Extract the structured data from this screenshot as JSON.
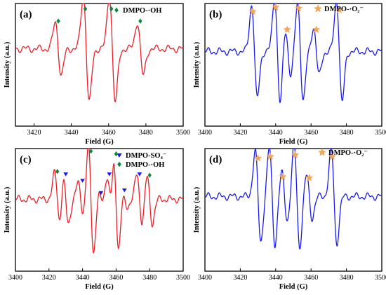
{
  "colors": {
    "red": "#ee1c25",
    "blue": "#1a1aee",
    "green": "#0a8a3a",
    "orange": "#f2a65a"
  },
  "chart_data": [
    {
      "id": "a",
      "type": "line",
      "panel_label": "(a)",
      "xlabel": "Field (G)",
      "ylabel": "Intensity (a.u.)",
      "xlim": [
        3410,
        3500
      ],
      "xticks": [
        3420,
        3440,
        3460,
        3480,
        3500
      ],
      "ylim": [
        -1.15,
        1.15
      ],
      "grid": false,
      "legend_position": "top-right",
      "line_color": "red",
      "baseline": 0.3,
      "lines": [
        {
          "center": 3433,
          "amp": 0.5
        },
        {
          "center": 3448,
          "amp": 1.0
        },
        {
          "center": 3462,
          "amp": 1.0
        },
        {
          "center": 3477,
          "amp": 0.5
        }
      ],
      "series": [
        {
          "name": "DMPO-·OH",
          "marker": "diamond",
          "color": "green",
          "x": [
            3433,
            3447.5,
            3461.5,
            3477
          ],
          "y": [
            0.82,
            1.05,
            1.05,
            0.82
          ]
        }
      ]
    },
    {
      "id": "b",
      "type": "line",
      "panel_label": "(b)",
      "xlabel": "Field (G)",
      "ylabel": "Intensity (a.u.)",
      "xlim": [
        3400,
        3500
      ],
      "xticks": [
        3400,
        3420,
        3440,
        3460,
        3480,
        3500
      ],
      "ylim": [
        -1.15,
        1.15
      ],
      "grid": false,
      "legend_position": "top-right",
      "line_color": "blue",
      "baseline": 0.25,
      "lines": [
        {
          "center": 3428,
          "amp": 0.88
        },
        {
          "center": 3441,
          "amp": 1.0
        },
        {
          "center": 3447,
          "amp": 0.45
        },
        {
          "center": 3454,
          "amp": 0.92
        },
        {
          "center": 3463,
          "amp": 0.45
        },
        {
          "center": 3476,
          "amp": 0.95
        }
      ],
      "series": [
        {
          "name": "DMPO-·O₂⁻",
          "marker": "star",
          "color": "orange",
          "x": [
            3427,
            3440,
            3446.5,
            3453,
            3463,
            3476
          ],
          "y": [
            1.0,
            1.08,
            0.66,
            1.06,
            0.66,
            1.03
          ]
        }
      ]
    },
    {
      "id": "c",
      "type": "line",
      "panel_label": "(c)",
      "xlabel": "Field (G)",
      "ylabel": "Intensity (a.u.)",
      "xlim": [
        3400,
        3500
      ],
      "xticks": [
        3400,
        3420,
        3440,
        3460,
        3480,
        3500
      ],
      "ylim": [
        -1.15,
        1.15
      ],
      "grid": false,
      "legend_position": "top-right",
      "line_color": "red",
      "baseline": 0.2,
      "lines": [
        {
          "center": 3425,
          "amp": 0.5
        },
        {
          "center": 3430,
          "amp": 0.45
        },
        {
          "center": 3439,
          "amp": 0.3
        },
        {
          "center": 3445,
          "amp": 1.0
        },
        {
          "center": 3451,
          "amp": 0.12
        },
        {
          "center": 3456,
          "amp": 0.45
        },
        {
          "center": 3460,
          "amp": 0.95
        },
        {
          "center": 3465,
          "amp": 0.15
        },
        {
          "center": 3474,
          "amp": 0.45
        },
        {
          "center": 3480,
          "amp": 0.45
        }
      ],
      "series": [
        {
          "name": "DMPO-SO₄⁻",
          "marker": "triangle-down",
          "color": "blue",
          "x": [
            3430,
            3440,
            3451,
            3456,
            3465,
            3474
          ],
          "y": [
            0.67,
            0.55,
            0.32,
            0.67,
            0.37,
            0.67
          ]
        },
        {
          "name": "DMPO-·OH",
          "marker": "diamond",
          "color": "green",
          "x": [
            3425,
            3445,
            3460,
            3480
          ],
          "y": [
            0.72,
            1.1,
            1.05,
            0.65
          ]
        }
      ]
    },
    {
      "id": "d",
      "type": "line",
      "panel_label": "(d)",
      "xlabel": "Field (G)",
      "ylabel": "Intensity (a.u.)",
      "xlim": [
        3400,
        3500
      ],
      "xticks": [
        3400,
        3420,
        3440,
        3460,
        3480,
        3500
      ],
      "ylim": [
        -1.15,
        1.15
      ],
      "grid": false,
      "legend_position": "top-right",
      "line_color": "blue",
      "baseline": 0.25,
      "lines": [
        {
          "center": 3430,
          "amp": 0.85
        },
        {
          "center": 3438,
          "amp": 0.9
        },
        {
          "center": 3445,
          "amp": 0.45
        },
        {
          "center": 3452,
          "amp": 0.95
        },
        {
          "center": 3459,
          "amp": 0.4
        },
        {
          "center": 3473,
          "amp": 0.88
        }
      ],
      "series": [
        {
          "name": "DMPO-·O₂⁻",
          "marker": "star",
          "color": "orange",
          "x": [
            3430,
            3437,
            3444,
            3451,
            3459,
            3472
          ],
          "y": [
            0.97,
            1.0,
            0.62,
            1.03,
            0.6,
            1.0
          ]
        }
      ]
    }
  ]
}
